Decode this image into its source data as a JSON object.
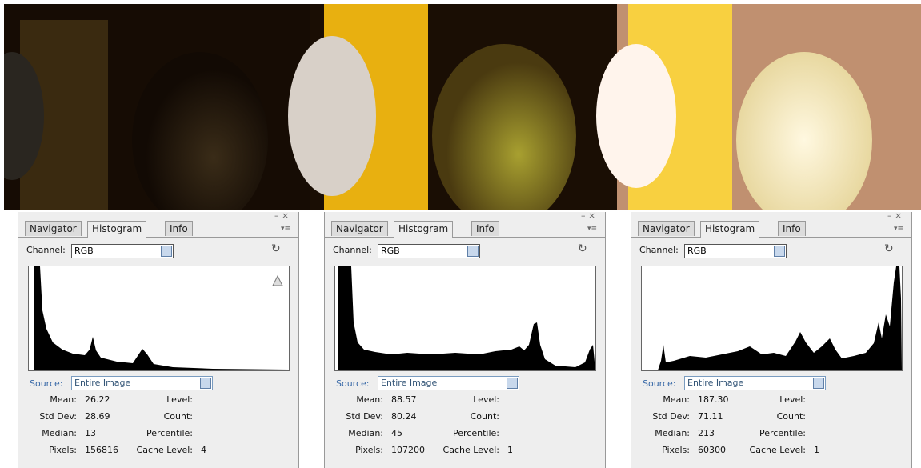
{
  "panels": [
    {
      "tabs": [
        "Navigator",
        "Histogram",
        "Info"
      ],
      "channel_label": "Channel:",
      "channel": "RGB",
      "source_label": "Source:",
      "source": "Entire Image",
      "stats": [
        [
          "Mean:",
          "26.22",
          "Level:",
          ""
        ],
        [
          "Std Dev:",
          "28.69",
          "Count:",
          ""
        ],
        [
          "Median:",
          "13",
          "Percentile:",
          ""
        ],
        [
          "Pixels:",
          "156816",
          "Cache Level:",
          "4"
        ]
      ]
    },
    {
      "tabs": [
        "Navigator",
        "Histogram",
        "Info"
      ],
      "channel_label": "Channel:",
      "channel": "RGB",
      "source_label": "Source:",
      "source": "Entire Image",
      "stats": [
        [
          "Mean:",
          "88.57",
          "Level:",
          ""
        ],
        [
          "Std Dev:",
          "80.24",
          "Count:",
          ""
        ],
        [
          "Median:",
          "45",
          "Percentile:",
          ""
        ],
        [
          "Pixels:",
          "107200",
          "Cache Level:",
          "1"
        ]
      ]
    },
    {
      "tabs": [
        "Navigator",
        "Histogram",
        "Info"
      ],
      "channel_label": "Channel:",
      "channel": "RGB",
      "source_label": "Source:",
      "source": "Entire Image",
      "stats": [
        [
          "Mean:",
          "187.30",
          "Level:",
          ""
        ],
        [
          "Std Dev:",
          "71.11",
          "Count:",
          ""
        ],
        [
          "Median:",
          "213",
          "Percentile:",
          ""
        ],
        [
          "Pixels:",
          "60300",
          "Cache Level:",
          "1"
        ]
      ]
    }
  ]
}
